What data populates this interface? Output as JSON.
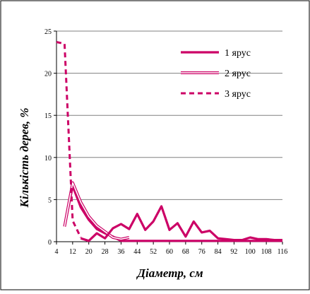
{
  "chart_data": {
    "type": "line",
    "xlabel": "Діаметр, см",
    "ylabel": "Кількість дерев, %",
    "x_ticks": [
      4,
      12,
      20,
      28,
      36,
      44,
      52,
      60,
      68,
      76,
      84,
      92,
      100,
      108,
      116
    ],
    "y_ticks": [
      0,
      5,
      10,
      15,
      20,
      25
    ],
    "xlim": [
      4,
      116
    ],
    "ylim": [
      0,
      25
    ],
    "grid": "horizontal",
    "legend_position": "top-right",
    "colors": {
      "series": "#cc0066",
      "grid": "#808080",
      "frame": "#000000"
    },
    "series": [
      {
        "name": "1 ярус",
        "style": "thick-solid",
        "points": [
          [
            8,
            1.8
          ],
          [
            12,
            6.6
          ],
          [
            16,
            4.1
          ],
          [
            20,
            2.6
          ],
          [
            24,
            1.5
          ],
          [
            28,
            1.0
          ],
          [
            32,
            0.6
          ],
          [
            36,
            0.1
          ],
          [
            40,
            0.1
          ],
          [
            44,
            0.1
          ],
          [
            48,
            0.1
          ],
          [
            52,
            0.1
          ],
          [
            56,
            0.1
          ],
          [
            60,
            0.1
          ],
          [
            64,
            0.1
          ],
          [
            68,
            0.1
          ],
          [
            72,
            0.1
          ],
          [
            76,
            0.1
          ],
          [
            80,
            0.1
          ],
          [
            84,
            0.1
          ],
          [
            88,
            0.1
          ],
          [
            92,
            0.1
          ],
          [
            96,
            0.1
          ],
          [
            100,
            0.1
          ],
          [
            104,
            0.1
          ],
          [
            108,
            0.1
          ],
          [
            112,
            0.1
          ],
          [
            116,
            0.1
          ]
        ]
      },
      {
        "name": "2 ярус",
        "style": "double-line",
        "points": [
          [
            8,
            1.8
          ],
          [
            12,
            7.0
          ],
          [
            16,
            4.7
          ],
          [
            20,
            3.0
          ],
          [
            24,
            1.9
          ],
          [
            28,
            1.2
          ],
          [
            32,
            0.5
          ],
          [
            36,
            0.3
          ],
          [
            40,
            0.5
          ]
        ]
      },
      {
        "name": "3 ярус",
        "style": "dashed",
        "points": [
          [
            4,
            23.7
          ],
          [
            8,
            23.5
          ],
          [
            12,
            2.5
          ],
          [
            16,
            0.5
          ]
        ]
      },
      {
        "name": "",
        "style": "thick-solid",
        "points": [
          [
            16,
            0.4
          ],
          [
            20,
            0.1
          ],
          [
            24,
            1.0
          ],
          [
            28,
            0.4
          ],
          [
            32,
            1.6
          ],
          [
            36,
            2.1
          ],
          [
            40,
            1.5
          ],
          [
            44,
            3.3
          ],
          [
            48,
            1.4
          ],
          [
            52,
            2.4
          ],
          [
            56,
            4.2
          ],
          [
            60,
            1.4
          ],
          [
            64,
            2.2
          ],
          [
            68,
            0.6
          ],
          [
            72,
            2.4
          ],
          [
            76,
            1.1
          ],
          [
            80,
            1.3
          ],
          [
            84,
            0.4
          ],
          [
            88,
            0.3
          ],
          [
            92,
            0.2
          ],
          [
            96,
            0.2
          ],
          [
            100,
            0.5
          ],
          [
            104,
            0.3
          ],
          [
            108,
            0.3
          ],
          [
            112,
            0.2
          ],
          [
            116,
            0.2
          ]
        ]
      }
    ]
  }
}
